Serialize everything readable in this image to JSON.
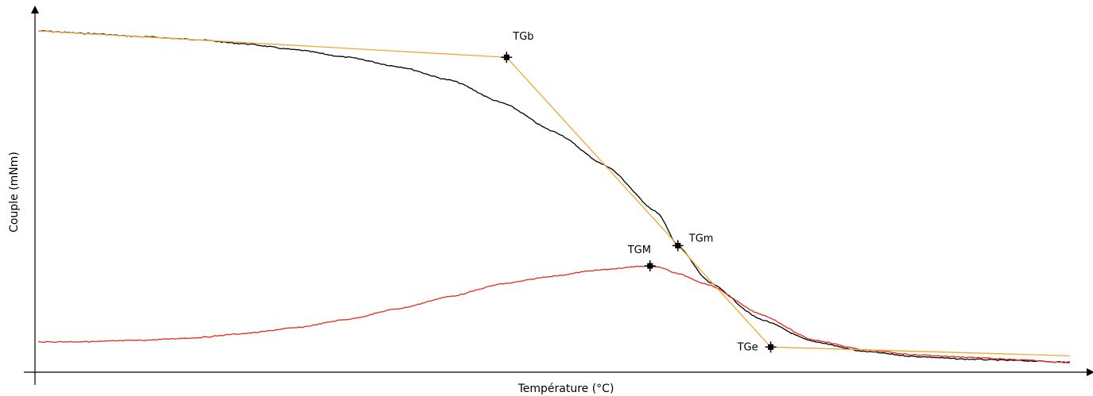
{
  "chart_data": {
    "type": "line",
    "xlabel": "Température (°C)",
    "ylabel": "Couple (mNm)",
    "xlim": [
      0,
      1000
    ],
    "ylim": [
      0,
      1000
    ],
    "grid": false,
    "legend": "none",
    "series": [
      {
        "key": "torque",
        "color": "#000000",
        "points": [
          [
            0,
            993
          ],
          [
            50,
            985
          ],
          [
            100,
            976
          ],
          [
            150,
            968
          ],
          [
            200,
            955
          ],
          [
            250,
            937
          ],
          [
            300,
            915
          ],
          [
            350,
            887
          ],
          [
            400,
            847
          ],
          [
            450,
            780
          ],
          [
            500,
            695
          ],
          [
            550,
            595
          ],
          [
            600,
            456
          ],
          [
            620,
            358
          ],
          [
            650,
            250
          ],
          [
            700,
            140
          ],
          [
            750,
            75
          ],
          [
            800,
            45
          ],
          [
            850,
            30
          ],
          [
            900,
            22
          ],
          [
            950,
            18
          ],
          [
            1000,
            13
          ]
        ]
      },
      {
        "key": "derivative",
        "color": "#e8291c",
        "points": [
          [
            0,
            73
          ],
          [
            50,
            74
          ],
          [
            100,
            78
          ],
          [
            150,
            85
          ],
          [
            200,
            98
          ],
          [
            250,
            115
          ],
          [
            300,
            140
          ],
          [
            350,
            172
          ],
          [
            400,
            208
          ],
          [
            450,
            245
          ],
          [
            500,
            268
          ],
          [
            540,
            285
          ],
          [
            590,
            298
          ],
          [
            600,
            296
          ],
          [
            620,
            275
          ],
          [
            650,
            242
          ],
          [
            700,
            155
          ],
          [
            750,
            80
          ],
          [
            800,
            50
          ],
          [
            850,
            35
          ],
          [
            900,
            28
          ],
          [
            950,
            20
          ],
          [
            1000,
            12
          ]
        ]
      },
      {
        "key": "tangents",
        "color": "#f0a830",
        "points": [
          [
            0,
            993
          ],
          [
            454,
            915
          ],
          [
            710,
            58
          ],
          [
            1000,
            32
          ]
        ]
      }
    ],
    "markers": [
      {
        "label": "TGb",
        "x": 454,
        "y": 915,
        "label_pos": "above"
      },
      {
        "label": "TGM",
        "x": 593,
        "y": 298,
        "label_pos": "above-left"
      },
      {
        "label": "TGm",
        "x": 620,
        "y": 358,
        "label_pos": "right"
      },
      {
        "label": "TGe",
        "x": 710,
        "y": 58,
        "label_pos": "left"
      }
    ]
  }
}
